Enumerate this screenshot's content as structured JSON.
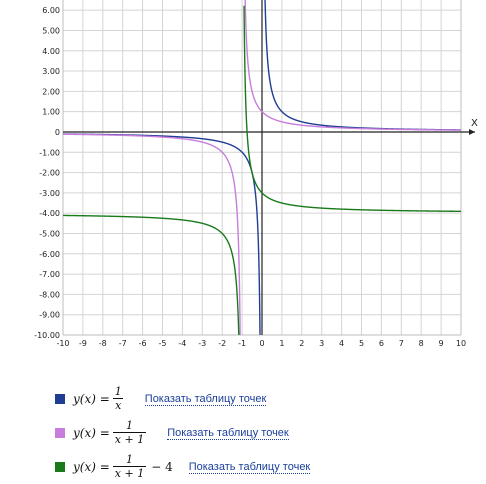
{
  "chart_data": {
    "type": "line",
    "xlabel": "X",
    "ylabel": "",
    "xlim": [
      -10,
      10
    ],
    "ylim": [
      -10,
      6.5
    ],
    "grid": true,
    "x_ticks": [
      "-10",
      "-9",
      "-8",
      "-7",
      "-6",
      "-5",
      "-4",
      "-3",
      "-2",
      "-1",
      "0",
      "1",
      "2",
      "3",
      "4",
      "5",
      "6",
      "7",
      "8",
      "9",
      "10"
    ],
    "y_ticks": [
      "6.00",
      "5.00",
      "4.00",
      "3.00",
      "2.00",
      "1.00",
      "0",
      "-1.00",
      "-2.00",
      "-3.00",
      "-4.00",
      "-5.00",
      "-6.00",
      "-7.00",
      "-8.00",
      "-9.00",
      "-10.00"
    ],
    "series": [
      {
        "formula": "1/x",
        "color": "#1f3d91",
        "shift": 0,
        "offset": 0
      },
      {
        "formula": "1/(x+1)",
        "color": "#c77ddb",
        "shift": 1,
        "offset": 0
      },
      {
        "formula": "1/(x+1) - 4",
        "color": "#1a7a1a",
        "shift": 1,
        "offset": -4
      }
    ]
  },
  "legend": [
    {
      "lhs": "y(x) =",
      "num": "1",
      "den": "x",
      "tail": "",
      "color": "#1f3d91",
      "link": "Показать таблицу точек"
    },
    {
      "lhs": "y(x) =",
      "num": "1",
      "den": "x + 1",
      "tail": "",
      "color": "#c77ddb",
      "link": "Показать таблицу точек"
    },
    {
      "lhs": "y(x) =",
      "num": "1",
      "den": "x + 1",
      "tail": "− 4",
      "color": "#1a7a1a",
      "link": "Показать таблицу точек"
    }
  ]
}
